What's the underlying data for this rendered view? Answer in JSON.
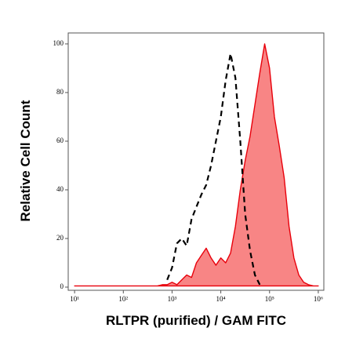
{
  "chart_data": {
    "type": "area",
    "xscale": "log",
    "x_label": "RLTPR (purified) / GAM FITC",
    "y_label": "Relative Cell Count",
    "x": [
      10,
      12.6,
      15.8,
      20,
      25.1,
      31.6,
      39.8,
      50.1,
      63.1,
      79.4,
      100,
      126,
      158,
      200,
      251,
      316,
      398,
      501,
      631,
      794,
      1000,
      1259,
      1585,
      1995,
      2512,
      3162,
      3981,
      5012,
      6310,
      7943,
      10000,
      12589,
      15849,
      19953,
      25119,
      31623,
      39811,
      50119,
      63096,
      79433,
      100000,
      125893,
      158489,
      199526,
      251189,
      316228,
      398107,
      501187,
      630957,
      794328,
      1000000
    ],
    "series": [
      {
        "color": "#e8000b",
        "fill": "#f88585",
        "dashed": false,
        "values": [
          0.5,
          0.5,
          0.5,
          0.5,
          0.5,
          0.5,
          0.5,
          0.5,
          0.5,
          0.5,
          0.5,
          0.5,
          0.5,
          0.5,
          0.5,
          0.5,
          0.5,
          0.5,
          1,
          1,
          2,
          1,
          3,
          5,
          4,
          10,
          13,
          16,
          12,
          9,
          12,
          10,
          14,
          25,
          40,
          52,
          62,
          75,
          88,
          100,
          90,
          70,
          58,
          45,
          25,
          12,
          5,
          2,
          1,
          0.5,
          0.5
        ]
      },
      {
        "color": "#000000",
        "fill": null,
        "dashed": true,
        "values": [
          null,
          null,
          null,
          null,
          null,
          null,
          null,
          null,
          null,
          null,
          null,
          null,
          null,
          null,
          null,
          null,
          null,
          null,
          null,
          3,
          8,
          18,
          20,
          17,
          28,
          33,
          38,
          42,
          50,
          60,
          70,
          85,
          96,
          86,
          60,
          30,
          15,
          5,
          1,
          null,
          null,
          null,
          null,
          null,
          null,
          null,
          null,
          null,
          null,
          null,
          null
        ]
      }
    ],
    "xlim": [
      7.4,
      1300000
    ],
    "xticks": [
      {
        "value": 10,
        "label": "10¹"
      },
      {
        "value": 100,
        "label": "10²"
      },
      {
        "value": 1000,
        "label": "10³"
      },
      {
        "value": 10000,
        "label": "10⁴"
      },
      {
        "value": 100000,
        "label": "10⁵"
      },
      {
        "value": 1000000,
        "label": "10⁶"
      }
    ],
    "ylim": [
      -1.3,
      104.5
    ],
    "yticks": [
      0,
      20,
      40,
      60,
      80,
      100
    ]
  }
}
